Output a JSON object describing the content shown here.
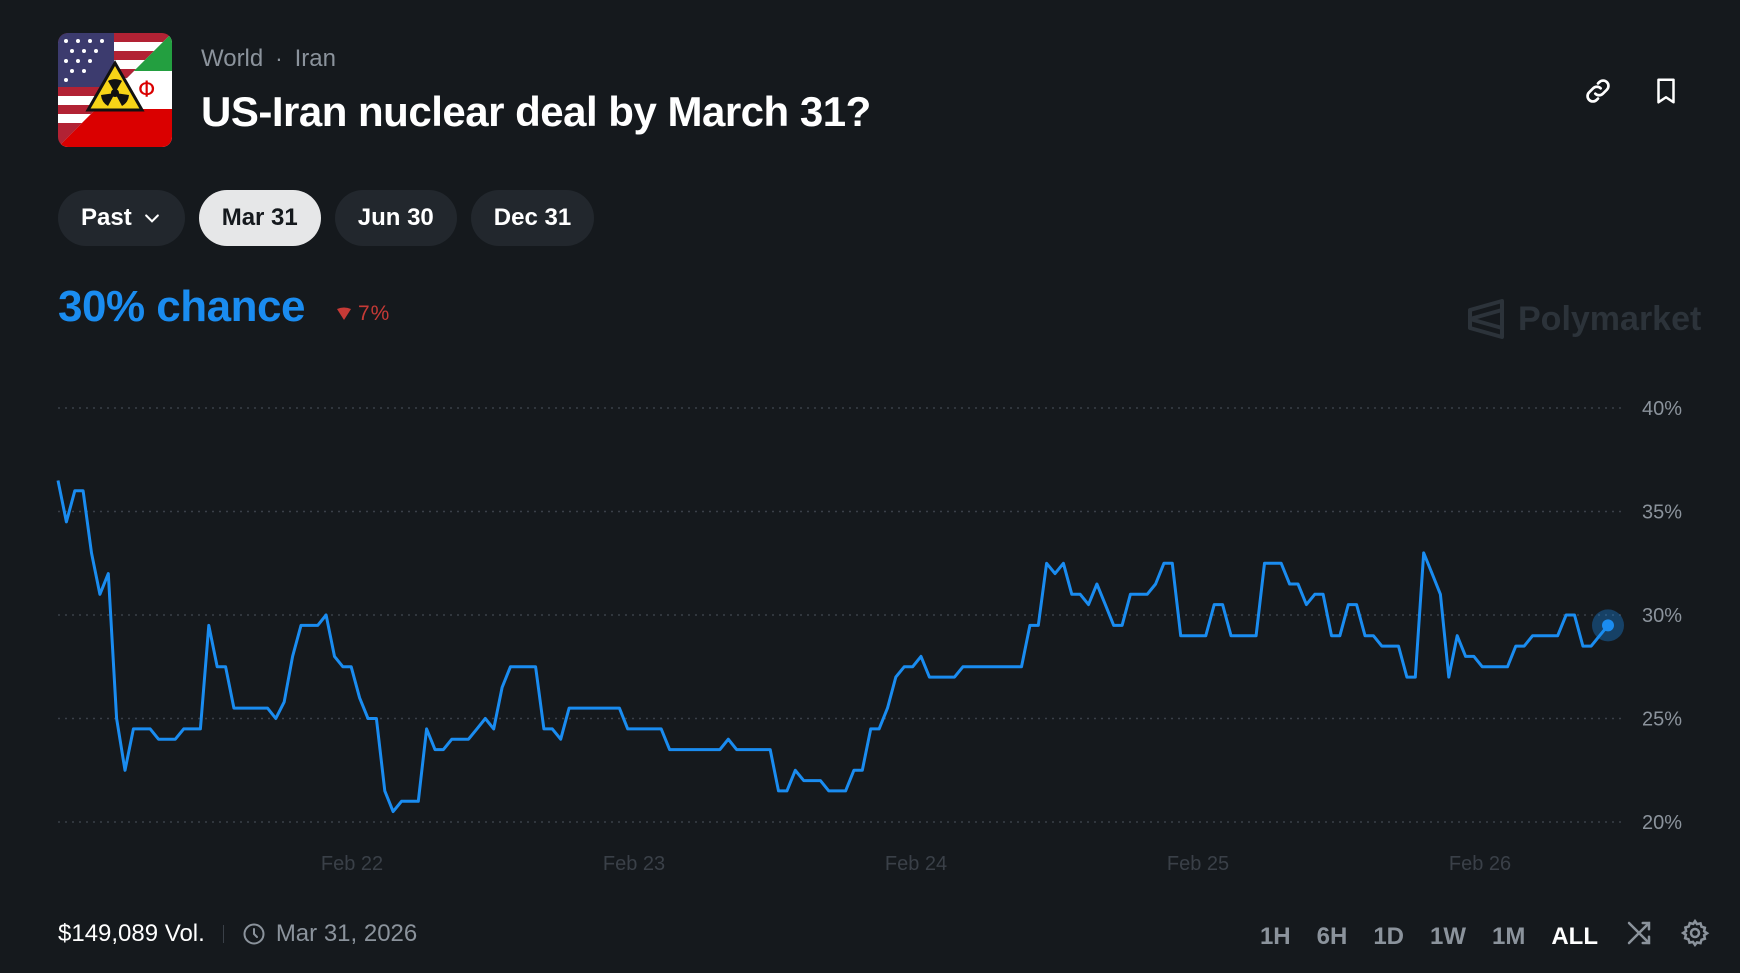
{
  "header": {
    "breadcrumb": [
      "World",
      "Iran"
    ],
    "breadcrumb_sep": "·",
    "title": "US-Iran nuclear deal by March 31?",
    "link_icon": "link-icon",
    "bookmark_icon": "bookmark-icon"
  },
  "tabs": [
    {
      "label": "Past",
      "dropdown": true,
      "active": false
    },
    {
      "label": "Mar 31",
      "active": true
    },
    {
      "label": "Jun 30",
      "active": false
    },
    {
      "label": "Dec 31",
      "active": false
    }
  ],
  "summary": {
    "chance": "30% chance",
    "change": "7%",
    "change_direction": "down",
    "watermark": "Polymarket"
  },
  "chart_data": {
    "type": "line",
    "y_ticks": [
      "40%",
      "35%",
      "30%",
      "25%",
      "20%"
    ],
    "ylim": [
      20,
      40
    ],
    "x_ticks": [
      "Feb 22",
      "Feb 23",
      "Feb 24",
      "Feb 25",
      "Feb 26"
    ],
    "grid": true,
    "series": [
      {
        "color": "#1a8cf0",
        "values": [
          36.5,
          34.5,
          36,
          36,
          33,
          31,
          32,
          25,
          22.5,
          24.5,
          24.5,
          24.5,
          24,
          24,
          24,
          24.5,
          24.5,
          24.5,
          29.5,
          27.5,
          27.5,
          25.5,
          25.5,
          25.5,
          25.5,
          25.5,
          25,
          25.8,
          28,
          29.5,
          29.5,
          29.5,
          30,
          28,
          27.5,
          27.5,
          26,
          25,
          25,
          21.5,
          20.5,
          21,
          21,
          21,
          24.5,
          23.5,
          23.5,
          24,
          24,
          24,
          24.5,
          25,
          24.5,
          26.5,
          27.5,
          27.5,
          27.5,
          27.5,
          24.5,
          24.5,
          24,
          25.5,
          25.5,
          25.5,
          25.5,
          25.5,
          25.5,
          25.5,
          24.5,
          24.5,
          24.5,
          24.5,
          24.5,
          23.5,
          23.5,
          23.5,
          23.5,
          23.5,
          23.5,
          23.5,
          24,
          23.5,
          23.5,
          23.5,
          23.5,
          23.5,
          21.5,
          21.5,
          22.5,
          22,
          22,
          22,
          21.5,
          21.5,
          21.5,
          22.5,
          22.5,
          24.5,
          24.5,
          25.5,
          27,
          27.5,
          27.5,
          28,
          27,
          27,
          27,
          27,
          27.5,
          27.5,
          27.5,
          27.5,
          27.5,
          27.5,
          27.5,
          27.5,
          29.5,
          29.5,
          32.5,
          32,
          32.5,
          31,
          31,
          30.5,
          31.5,
          30.5,
          29.5,
          29.5,
          31,
          31,
          31,
          31.5,
          32.5,
          32.5,
          29,
          29,
          29,
          29,
          30.5,
          30.5,
          29,
          29,
          29,
          29,
          32.5,
          32.5,
          32.5,
          31.5,
          31.5,
          30.5,
          31,
          31,
          29,
          29,
          30.5,
          30.5,
          29,
          29,
          28.5,
          28.5,
          28.5,
          27,
          27,
          33,
          32,
          31,
          27,
          29,
          28,
          28,
          27.5,
          27.5,
          27.5,
          27.5,
          28.5,
          28.5,
          29,
          29,
          29,
          29,
          30,
          30,
          28.5,
          28.5,
          29,
          29.5
        ]
      }
    ]
  },
  "footer": {
    "volume": "$149,089 Vol.",
    "end_date": "Mar 31, 2026",
    "ranges": [
      "1H",
      "6H",
      "1D",
      "1W",
      "1M",
      "ALL"
    ],
    "active_range": "ALL"
  }
}
